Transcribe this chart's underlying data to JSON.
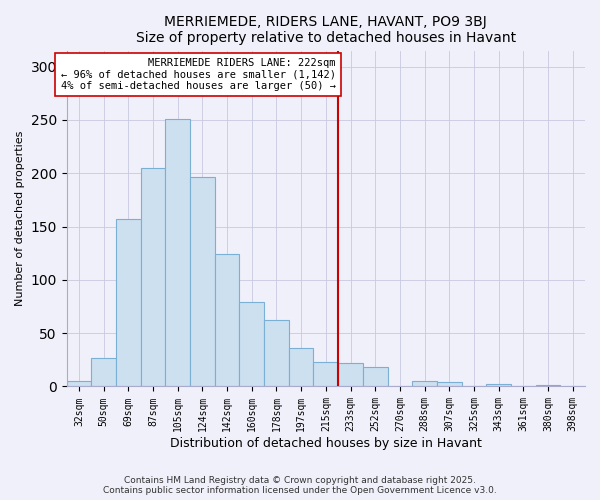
{
  "title": "MERRIEMEDE, RIDERS LANE, HAVANT, PO9 3BJ",
  "subtitle": "Size of property relative to detached houses in Havant",
  "xlabel": "Distribution of detached houses by size in Havant",
  "ylabel": "Number of detached properties",
  "bar_labels": [
    "32sqm",
    "50sqm",
    "69sqm",
    "87sqm",
    "105sqm",
    "124sqm",
    "142sqm",
    "160sqm",
    "178sqm",
    "197sqm",
    "215sqm",
    "233sqm",
    "252sqm",
    "270sqm",
    "288sqm",
    "307sqm",
    "325sqm",
    "343sqm",
    "361sqm",
    "380sqm",
    "398sqm"
  ],
  "bar_values": [
    5,
    27,
    157,
    205,
    251,
    196,
    124,
    79,
    62,
    36,
    23,
    22,
    18,
    0,
    5,
    4,
    0,
    2,
    0,
    1,
    0
  ],
  "bar_color": "#cce0f0",
  "bar_edge_color": "#7ab0d4",
  "ylim": [
    0,
    315
  ],
  "yticks": [
    0,
    50,
    100,
    150,
    200,
    250,
    300
  ],
  "vline_index": 10,
  "annotation_text_lines": [
    "MERRIEMEDE RIDERS LANE: 222sqm",
    "← 96% of detached houses are smaller (1,142)",
    "4% of semi-detached houses are larger (50) →"
  ],
  "vline_color": "#cc0000",
  "footer_line1": "Contains HM Land Registry data © Crown copyright and database right 2025.",
  "footer_line2": "Contains public sector information licensed under the Open Government Licence v3.0.",
  "bg_color": "#f0f0fa",
  "grid_color": "#c8c8e0"
}
